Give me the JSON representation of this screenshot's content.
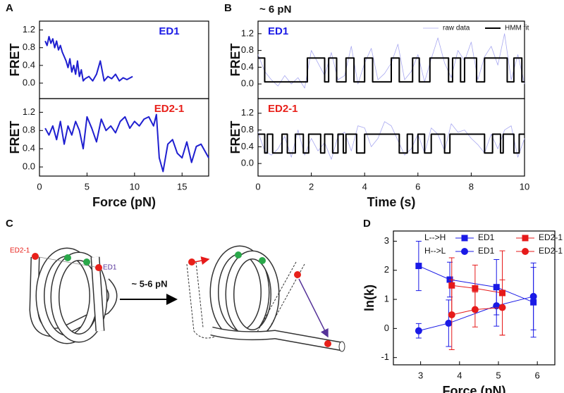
{
  "chart_data": [
    {
      "type": "line",
      "panel": "A",
      "ylabel": "FRET",
      "label": "ED1",
      "label_color": "#1a1ae6",
      "xlim": [
        0,
        17.8
      ],
      "ylim": [
        -0.35,
        1.4
      ],
      "yticks": [
        {
          "value": 0,
          "label": "0.0"
        },
        0.4,
        0.8,
        1.2
      ],
      "color": "#1f1fd0",
      "x": [
        0.6,
        0.8,
        1.0,
        1.2,
        1.4,
        1.6,
        1.8,
        2.0,
        2.2,
        2.4,
        2.6,
        2.8,
        3.0,
        3.2,
        3.4,
        3.6,
        3.8,
        4.0,
        4.2,
        4.4,
        4.6,
        4.8,
        5.2,
        5.6,
        6.0,
        6.4,
        6.8,
        7.2,
        7.6,
        8.0,
        8.4,
        8.8,
        9.2,
        9.8
      ],
      "values": [
        0.95,
        0.85,
        1.05,
        0.9,
        1.0,
        0.8,
        0.95,
        0.75,
        0.85,
        0.7,
        0.6,
        0.5,
        0.35,
        0.55,
        0.25,
        0.4,
        0.2,
        0.5,
        0.15,
        0.3,
        0.05,
        0.1,
        0.15,
        0.05,
        0.2,
        0.5,
        0.05,
        0.15,
        0.1,
        0.2,
        0.05,
        0.12,
        0.08,
        0.15
      ]
    },
    {
      "type": "line",
      "ylabel": "FRET",
      "xlabel": "Force (pN)",
      "label": "ED2-1",
      "label_color": "#e8201a",
      "xlim": [
        0,
        17.8
      ],
      "ylim": [
        -0.2,
        1.5
      ],
      "xticks": [
        0,
        5,
        10,
        15
      ],
      "yticks": [
        {
          "value": 0,
          "label": "0.0"
        },
        0.4,
        0.8,
        1.2
      ],
      "color": "#1f1fd0",
      "x": [
        0.6,
        1.0,
        1.4,
        1.8,
        2.2,
        2.6,
        3.0,
        3.4,
        3.8,
        4.2,
        4.6,
        5.0,
        5.5,
        6.0,
        6.5,
        7.0,
        7.5,
        8.0,
        8.5,
        9.0,
        9.5,
        10.0,
        10.5,
        11.0,
        11.5,
        12.0,
        12.3,
        12.6,
        13.0,
        13.5,
        14.0,
        14.5,
        15.0,
        15.5,
        16.0,
        16.5,
        17.0,
        17.8
      ],
      "values": [
        0.85,
        0.7,
        0.9,
        0.6,
        1.0,
        0.5,
        0.9,
        0.7,
        1.0,
        0.8,
        0.4,
        1.1,
        0.85,
        0.55,
        1.05,
        0.8,
        0.9,
        0.75,
        1.0,
        1.1,
        0.85,
        1.0,
        0.9,
        1.05,
        1.1,
        0.9,
        1.15,
        0.2,
        -0.1,
        0.5,
        0.6,
        0.3,
        0.2,
        0.55,
        0.1,
        0.45,
        0.5,
        0.2
      ]
    },
    {
      "type": "line",
      "panel": "B",
      "title": "~ 6 pN",
      "ylabel": "FRET",
      "label": "ED1",
      "label_color": "#1a1ae6",
      "xlim": [
        0,
        10
      ],
      "ylim": [
        -0.35,
        1.5
      ],
      "yticks": [
        {
          "value": 0,
          "label": "0.0"
        },
        0.4,
        0.8,
        1.2
      ],
      "series": [
        {
          "name": "raw data",
          "color": "#a8a8f0",
          "x": [
            0,
            0.25,
            0.5,
            0.75,
            1,
            1.25,
            1.5,
            1.75,
            2,
            2.25,
            2.5,
            2.75,
            3,
            3.25,
            3.5,
            3.75,
            4,
            4.25,
            4.5,
            4.75,
            5,
            5.25,
            5.5,
            5.75,
            6,
            6.25,
            6.5,
            6.75,
            7,
            7.25,
            7.5,
            7.75,
            8,
            8.25,
            8.5,
            8.75,
            9,
            9.25,
            9.5,
            9.75,
            10
          ],
          "values": [
            0.7,
            0.3,
            0.1,
            -0.05,
            0.2,
            0.0,
            0.15,
            -0.1,
            0.8,
            0.5,
            0.2,
            0.75,
            0.1,
            0.2,
            0.9,
            0.0,
            0.5,
            0.85,
            0.1,
            0.25,
            0.5,
            0.95,
            0.1,
            0.3,
            0.7,
            0.05,
            0.6,
            1.1,
            0.5,
            0.15,
            0.8,
            0.55,
            1.0,
            0.1,
            0.65,
            0.9,
            0.45,
            1.2,
            0.1,
            0.7,
            0.0
          ]
        },
        {
          "name": "HMM fit",
          "color": "#000000",
          "x": [
            0,
            0.25,
            0.25,
            1.85,
            1.85,
            2.5,
            2.5,
            2.65,
            2.65,
            2.95,
            2.95,
            3.3,
            3.3,
            3.6,
            3.6,
            4.0,
            4.0,
            4.3,
            4.3,
            5.0,
            5.0,
            5.3,
            5.3,
            5.8,
            5.8,
            6.05,
            6.05,
            6.45,
            6.45,
            7.15,
            7.15,
            7.3,
            7.3,
            7.6,
            7.6,
            7.75,
            7.75,
            8.2,
            8.2,
            8.5,
            8.5,
            9.35,
            9.35,
            9.6,
            9.6,
            9.9,
            9.9,
            10
          ],
          "values": [
            0.62,
            0.62,
            0.05,
            0.05,
            0.62,
            0.62,
            0.05,
            0.05,
            0.62,
            0.62,
            0.05,
            0.05,
            0.62,
            0.62,
            0.05,
            0.05,
            0.62,
            0.62,
            0.05,
            0.05,
            0.62,
            0.62,
            0.05,
            0.05,
            0.62,
            0.62,
            0.05,
            0.05,
            0.62,
            0.62,
            0.05,
            0.05,
            0.62,
            0.62,
            0.05,
            0.05,
            0.62,
            0.62,
            0.05,
            0.05,
            0.62,
            0.62,
            0.05,
            0.05,
            0.62,
            0.62,
            0.05,
            0.05
          ]
        }
      ]
    },
    {
      "type": "line",
      "ylabel": "FRET",
      "xlabel": "Time (s)",
      "label": "ED2-1",
      "label_color": "#e8201a",
      "xlim": [
        0,
        10
      ],
      "ylim": [
        -0.3,
        1.55
      ],
      "xticks": [
        0,
        2,
        4,
        6,
        8,
        10
      ],
      "yticks": [
        {
          "value": 0,
          "label": "0.0"
        },
        0.4,
        0.8,
        1.2
      ],
      "series": [
        {
          "color": "#a8a8f0",
          "x": [
            0,
            0.25,
            0.5,
            0.75,
            1,
            1.25,
            1.5,
            1.75,
            2,
            2.25,
            2.5,
            2.75,
            3,
            3.25,
            3.5,
            3.75,
            4,
            4.25,
            4.5,
            4.75,
            5,
            5.25,
            5.5,
            5.75,
            6,
            6.25,
            6.5,
            6.75,
            7,
            7.25,
            7.5,
            7.75,
            8,
            8.25,
            8.5,
            8.75,
            9,
            9.25,
            9.5,
            9.75,
            10
          ],
          "values": [
            0.75,
            0.3,
            0.2,
            0.35,
            0.65,
            0.15,
            0.8,
            0.2,
            0.6,
            0.3,
            0.5,
            0.1,
            0.65,
            0.75,
            0.3,
            0.9,
            0.85,
            0.4,
            0.6,
            1.0,
            0.9,
            0.55,
            0.2,
            0.35,
            0.7,
            0.25,
            0.85,
            0.7,
            0.3,
            0.95,
            0.75,
            0.8,
            0.6,
            0.45,
            0.25,
            0.7,
            0.35,
            0.8,
            0.9,
            0.15,
            0.6
          ]
        },
        {
          "color": "#000000",
          "x": [
            0,
            0.25,
            0.25,
            0.35,
            0.35,
            0.55,
            0.55,
            0.9,
            0.9,
            1.1,
            1.1,
            1.4,
            1.4,
            1.7,
            1.7,
            1.9,
            1.9,
            2.35,
            2.35,
            2.5,
            2.5,
            2.8,
            2.8,
            3.0,
            3.0,
            3.2,
            3.2,
            3.3,
            3.3,
            3.7,
            3.7,
            4.0,
            4.0,
            5.3,
            5.3,
            5.6,
            5.6,
            5.8,
            5.8,
            6.0,
            6.0,
            6.25,
            6.25,
            6.5,
            6.5,
            7.0,
            7.0,
            7.2,
            7.2,
            8.5,
            8.5,
            8.8,
            8.8,
            9.1,
            9.1,
            9.2,
            9.2,
            9.6,
            9.6,
            9.8,
            9.8,
            10
          ],
          "values": [
            0.7,
            0.7,
            0.25,
            0.25,
            0.7,
            0.7,
            0.25,
            0.25,
            0.7,
            0.7,
            0.25,
            0.25,
            0.7,
            0.7,
            0.25,
            0.25,
            0.7,
            0.7,
            0.25,
            0.25,
            0.7,
            0.7,
            0.25,
            0.25,
            0.7,
            0.7,
            0.25,
            0.25,
            0.7,
            0.7,
            0.25,
            0.25,
            0.7,
            0.7,
            0.25,
            0.25,
            0.7,
            0.7,
            0.25,
            0.25,
            0.7,
            0.7,
            0.25,
            0.25,
            0.7,
            0.7,
            0.25,
            0.25,
            0.7,
            0.7,
            0.25,
            0.25,
            0.7,
            0.7,
            0.25,
            0.25,
            0.7,
            0.7,
            0.25,
            0.25,
            0.7,
            0.7
          ]
        }
      ]
    },
    {
      "type": "line",
      "panel": "D",
      "ylabel": "ln(k)",
      "xlabel": "Force (pN)",
      "xlim": [
        2.3,
        6.45
      ],
      "ylim": [
        -1.25,
        3.35
      ],
      "xticks": [
        3,
        4,
        5,
        6
      ],
      "yticks": [
        -1,
        0,
        1,
        2,
        3
      ],
      "series_groups": [
        {
          "name": "L-->H",
          "marker": "square",
          "series": [
            {
              "name": "ED1",
              "color": "#1a1ae6",
              "x": [
                2.95,
                3.75,
                4.95,
                5.9
              ],
              "values": [
                2.15,
                1.68,
                1.42,
                0.9
              ],
              "errors": [
                0.85,
                0.6,
                0.95,
                1.2
              ]
            },
            {
              "name": "ED2-1",
              "color": "#e61a1a",
              "x": [
                3.8,
                4.4,
                5.1
              ],
              "values": [
                1.48,
                1.38,
                1.22
              ],
              "errors": [
                0.95,
                0.8,
                1.45
              ]
            }
          ]
        },
        {
          "name": "H-->L",
          "marker": "circle",
          "series": [
            {
              "name": "ED1",
              "color": "#1a1ae6",
              "x": [
                2.95,
                3.72,
                4.95,
                5.9
              ],
              "values": [
                -0.08,
                0.18,
                0.78,
                1.1
              ],
              "errors": [
                0.25,
                0.8,
                0.7,
                1.15
              ]
            },
            {
              "name": "ED2-1",
              "color": "#e61a1a",
              "x": [
                3.8,
                4.4,
                5.1
              ],
              "values": [
                0.47,
                0.65,
                0.72
              ],
              "errors": [
                1.2,
                0.6,
                0.95
              ]
            }
          ]
        }
      ]
    }
  ],
  "diagram": {
    "panel": "C",
    "labels": {
      "left_red": "ED2-1",
      "left_purple": "ED1",
      "force": "~ 5-6 pN"
    }
  }
}
